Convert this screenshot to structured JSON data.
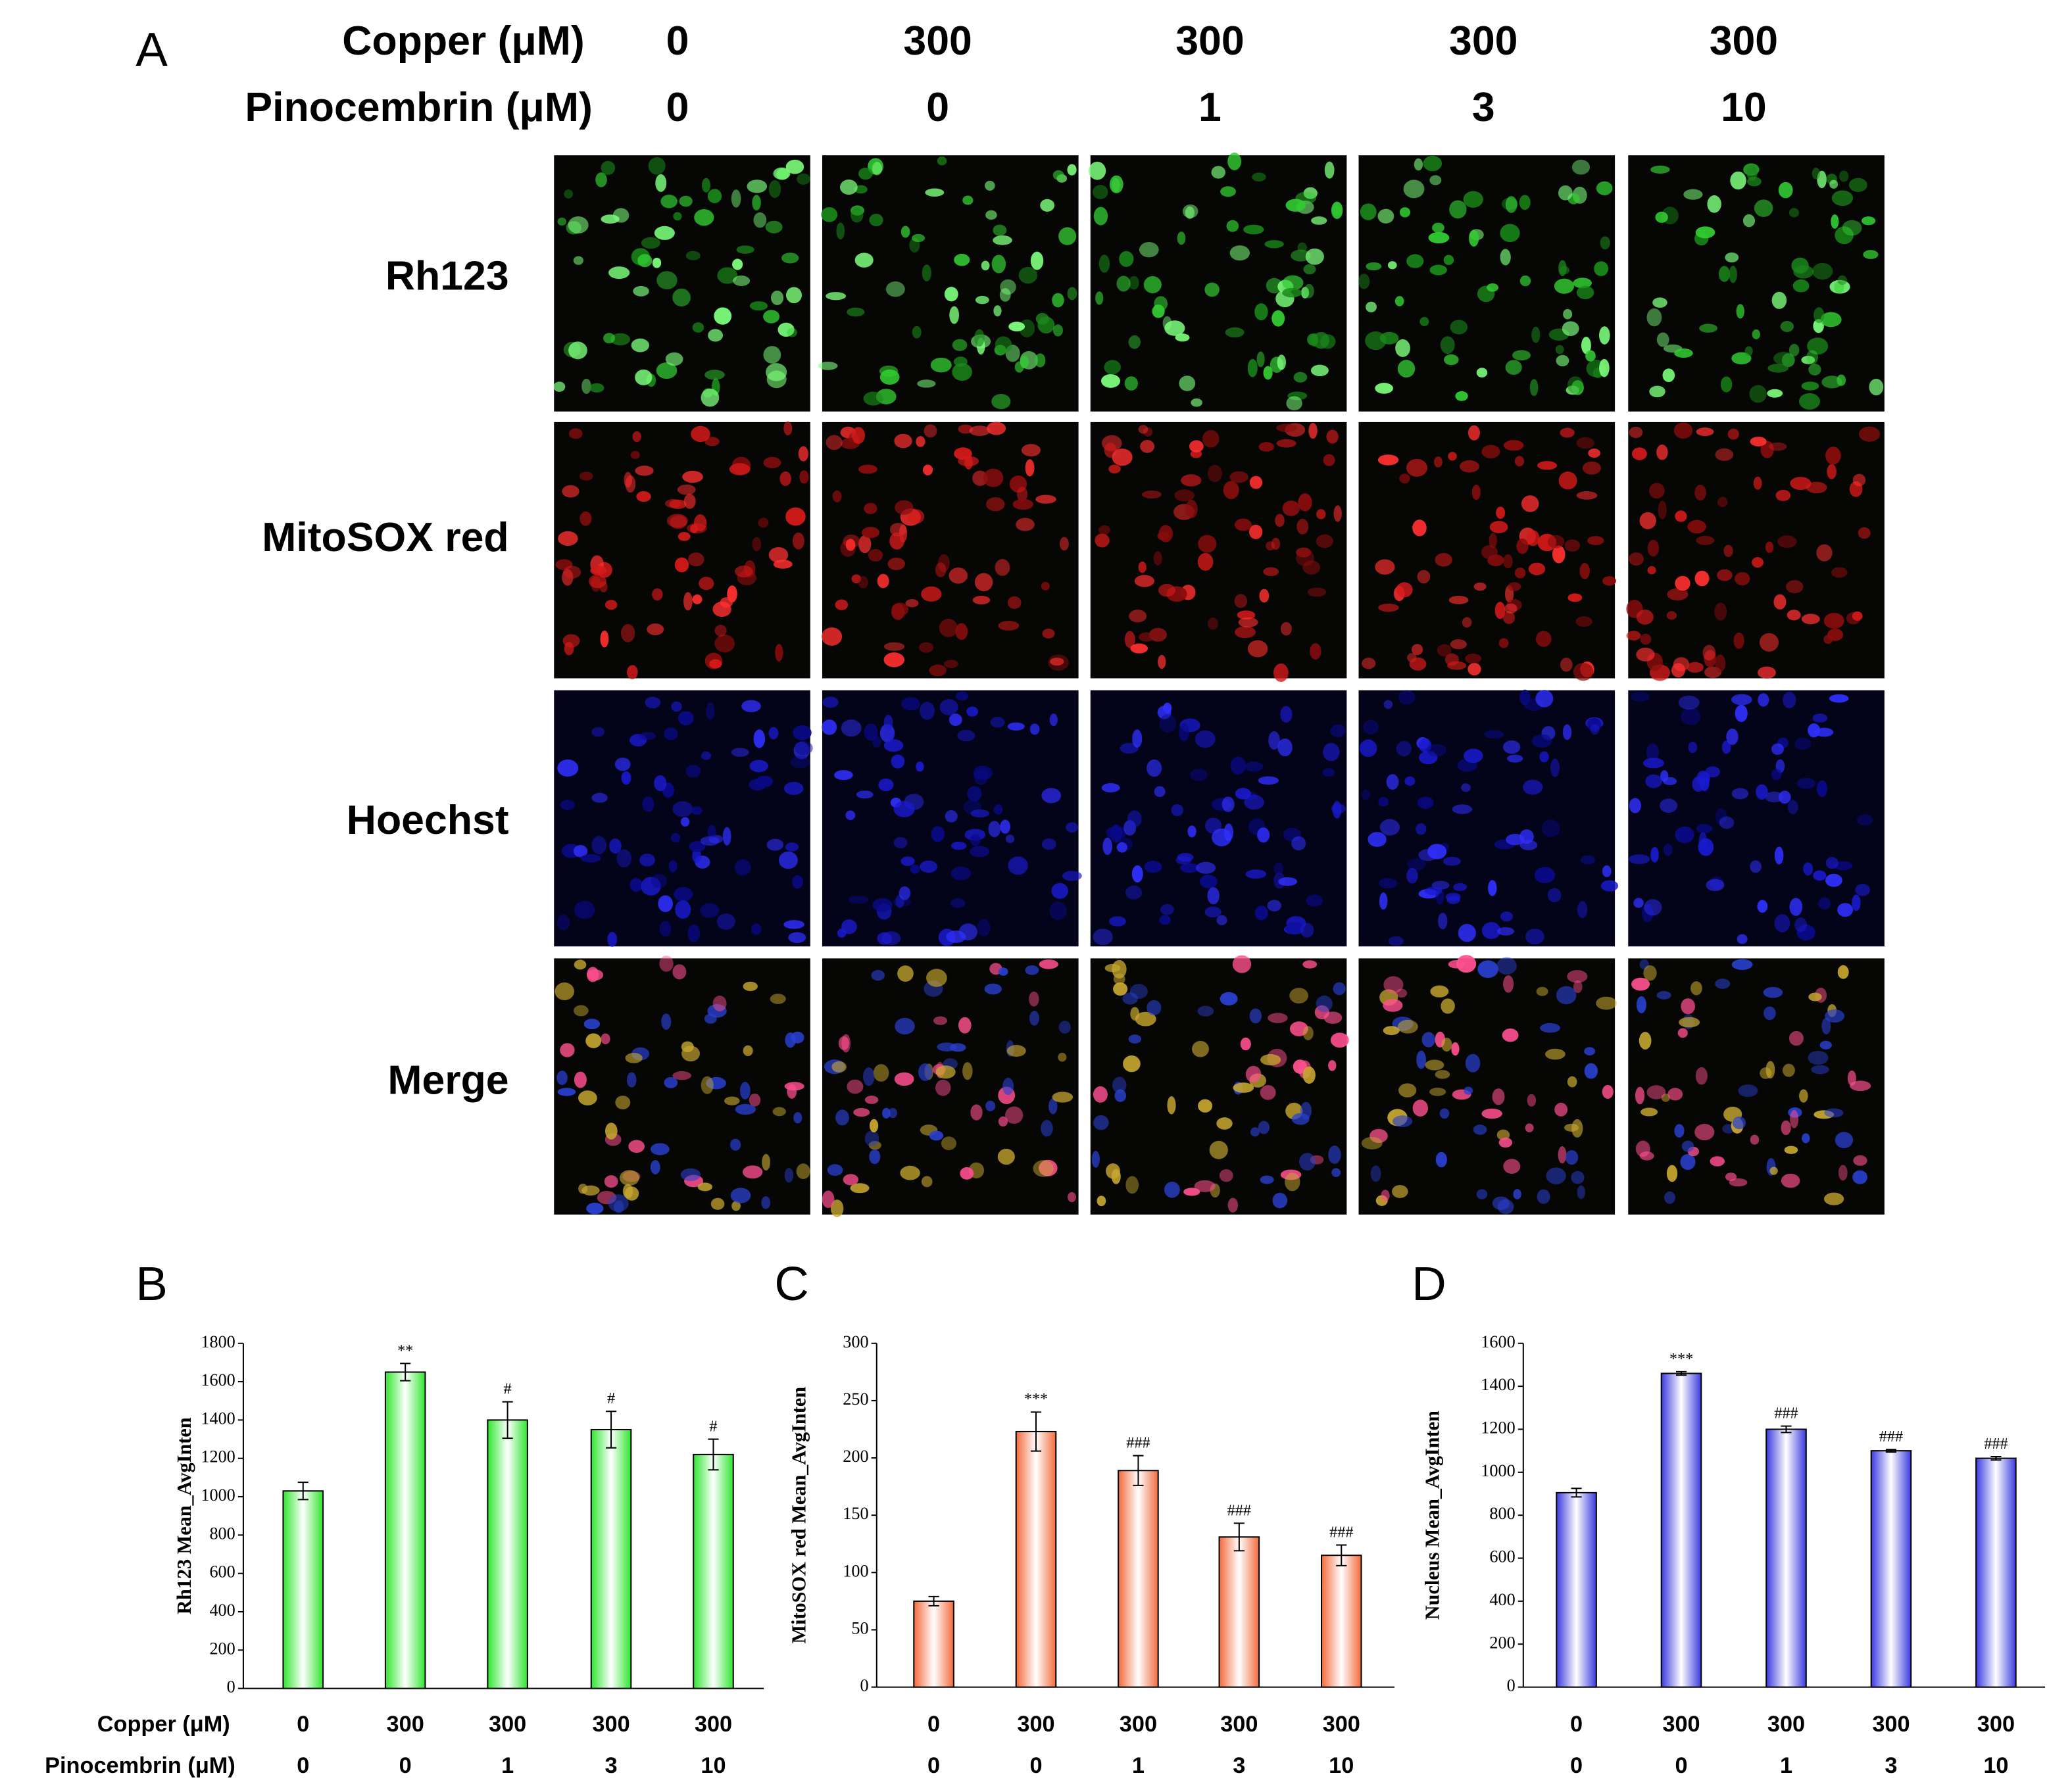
{
  "panel_a": {
    "label": "A",
    "row_headers": [
      "Copper (μM)",
      "Pinocembrin (μM)"
    ],
    "copper": [
      "0",
      "300",
      "300",
      "300",
      "300"
    ],
    "pinocembrin": [
      "0",
      "0",
      "1",
      "3",
      "10"
    ],
    "stains": [
      "Rh123",
      "MitoSOX red",
      "Hoechst",
      "Merge"
    ]
  },
  "chart_data": [
    {
      "type": "bar",
      "panel": "B",
      "y_label": "Rh123 Mean_AvgInten",
      "category_labels": [
        "Copper (μM)",
        "Pinocembrin (μM)"
      ],
      "categories": [
        "0",
        "300",
        "300",
        "300",
        "300"
      ],
      "categories2": [
        "0",
        "0",
        "1",
        "3",
        "10"
      ],
      "values": [
        1030,
        1650,
        1400,
        1350,
        1220
      ],
      "errors": [
        45,
        45,
        95,
        95,
        80
      ],
      "annotations": [
        null,
        "**",
        "#",
        "#",
        "#"
      ],
      "color": "#2ee62e",
      "ylim": [
        0,
        1800
      ],
      "yticks": [
        0,
        200,
        400,
        600,
        800,
        1000,
        1200,
        1400,
        1600,
        1800
      ]
    },
    {
      "type": "bar",
      "panel": "C",
      "y_label": "MitoSOX red Mean_AvgInten",
      "categories": [
        "0",
        "300",
        "300",
        "300",
        "300"
      ],
      "categories2": [
        "0",
        "0",
        "1",
        "3",
        "10"
      ],
      "values": [
        75,
        223,
        189,
        131,
        115
      ],
      "errors": [
        4,
        17,
        13,
        12,
        9
      ],
      "annotations": [
        null,
        "***",
        "###",
        "###",
        "###"
      ],
      "color": "#f26a3c",
      "ylim": [
        0,
        300
      ],
      "yticks": [
        0,
        50,
        100,
        150,
        200,
        250,
        300
      ]
    },
    {
      "type": "bar",
      "panel": "D",
      "y_label": "Nucleus Mean_AvgInten",
      "categories": [
        "0",
        "300",
        "300",
        "300",
        "300"
      ],
      "categories2": [
        "0",
        "0",
        "1",
        "3",
        "10"
      ],
      "values": [
        905,
        1460,
        1200,
        1100,
        1065
      ],
      "errors": [
        20,
        8,
        15,
        6,
        8
      ],
      "annotations": [
        null,
        "***",
        "###",
        "###",
        "###"
      ],
      "color": "#3a3ae0",
      "ylim": [
        0,
        1600
      ],
      "yticks": [
        0,
        200,
        400,
        600,
        800,
        1000,
        1200,
        1400,
        1600
      ]
    }
  ]
}
